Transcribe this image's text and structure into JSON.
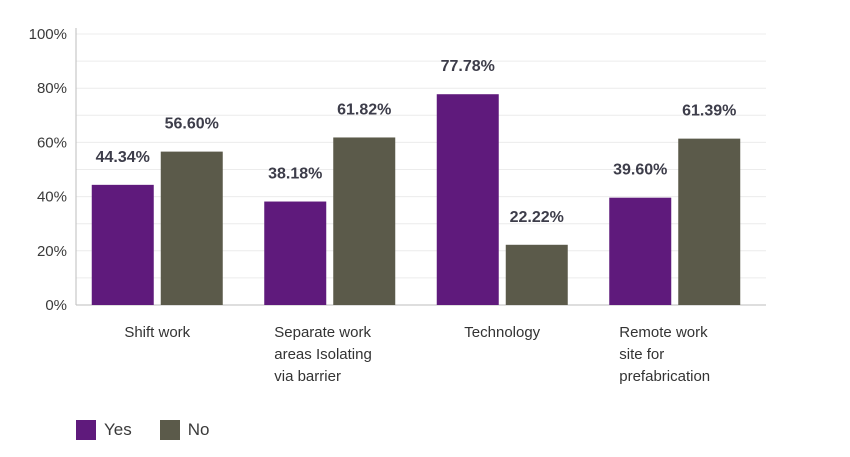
{
  "chart_data": {
    "type": "bar",
    "categories": [
      [
        "Shift work"
      ],
      [
        "Separate work",
        "areas Isolating",
        "via barrier"
      ],
      [
        "Technology"
      ],
      [
        "Remote work",
        "site for",
        "prefabrication"
      ]
    ],
    "series": [
      {
        "name": "Yes",
        "color": "#5f1a7c",
        "values": [
          44.34,
          38.18,
          77.78,
          39.6
        ],
        "labels": [
          "44.34%",
          "38.18%",
          "77.78%",
          "39.60%"
        ]
      },
      {
        "name": "No",
        "color": "#5b5a4a",
        "values": [
          56.6,
          61.82,
          22.22,
          61.39
        ],
        "labels": [
          "56.60%",
          "61.82%",
          "22.22%",
          "61.39%"
        ]
      }
    ],
    "yticks": [
      "0%",
      "20%",
      "40%",
      "60%",
      "80%",
      "100%"
    ],
    "ylim": [
      0,
      100
    ],
    "grid": true,
    "legend_position": "bottom-left"
  },
  "legend": {
    "yes_label": "Yes",
    "no_label": "No"
  },
  "colors": {
    "yes": "#5f1a7c",
    "no": "#5b5a4a",
    "grid": "#ececec",
    "axis": "#bdbdbd"
  }
}
